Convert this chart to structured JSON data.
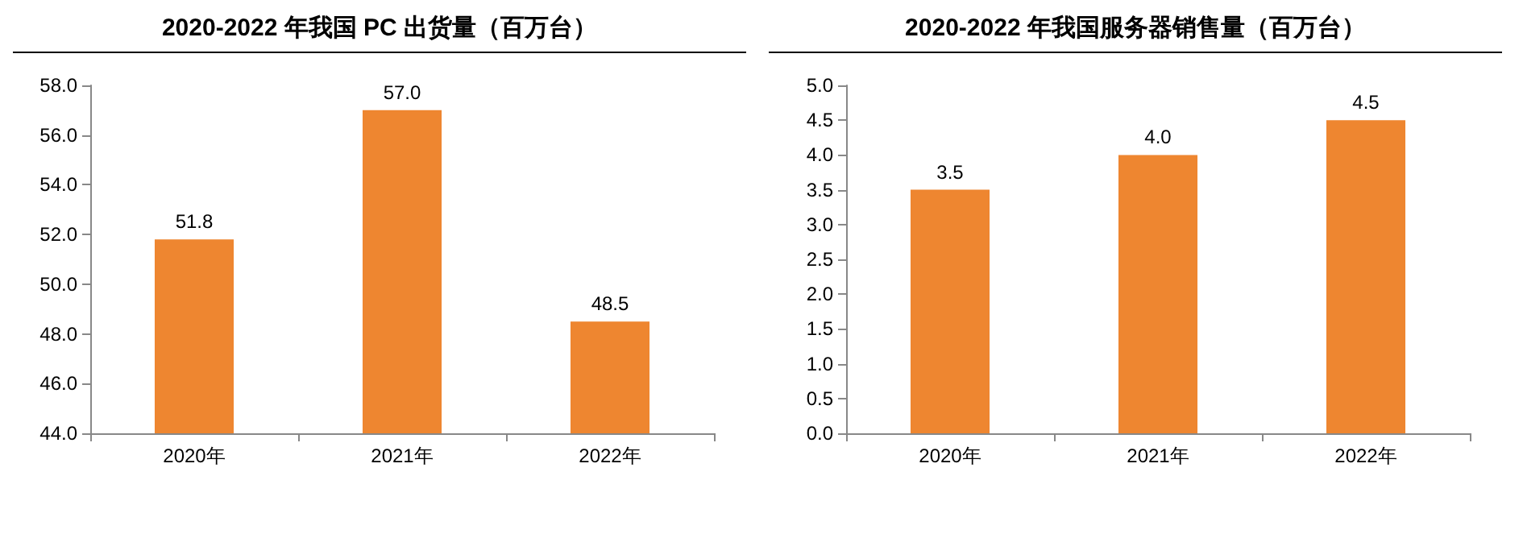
{
  "chart_data": [
    {
      "type": "bar",
      "title": "2020-2022 年我国 PC 出货量（百万台）",
      "categories": [
        "2020年",
        "2021年",
        "2022年"
      ],
      "values": [
        51.8,
        57.0,
        48.5
      ],
      "value_labels": [
        "51.8",
        "57.0",
        "48.5"
      ],
      "color": "#ee8630",
      "ylim": [
        44,
        58
      ],
      "yticks": [
        {
          "value": 44,
          "label": "44.0"
        },
        {
          "value": 46,
          "label": "46.0"
        },
        {
          "value": 48,
          "label": "48.0"
        },
        {
          "value": 50,
          "label": "50.0"
        },
        {
          "value": 52,
          "label": "52.0"
        },
        {
          "value": 54,
          "label": "54.0"
        },
        {
          "value": 56,
          "label": "56.0"
        },
        {
          "value": 58,
          "label": "58.0"
        }
      ]
    },
    {
      "type": "bar",
      "title": "2020-2022 年我国服务器销售量（百万台）",
      "categories": [
        "2020年",
        "2021年",
        "2022年"
      ],
      "values": [
        3.5,
        4.0,
        4.5
      ],
      "value_labels": [
        "3.5",
        "4.0",
        "4.5"
      ],
      "color": "#ee8630",
      "ylim": [
        0,
        5
      ],
      "yticks": [
        {
          "value": 0,
          "label": "0.0"
        },
        {
          "value": 0.5,
          "label": "0.5"
        },
        {
          "value": 1,
          "label": "1.0"
        },
        {
          "value": 1.5,
          "label": "1.5"
        },
        {
          "value": 2,
          "label": "2.0"
        },
        {
          "value": 2.5,
          "label": "2.5"
        },
        {
          "value": 3,
          "label": "3.0"
        },
        {
          "value": 3.5,
          "label": "3.5"
        },
        {
          "value": 4,
          "label": "4.0"
        },
        {
          "value": 4.5,
          "label": "4.5"
        },
        {
          "value": 5,
          "label": "5.0"
        }
      ]
    }
  ]
}
